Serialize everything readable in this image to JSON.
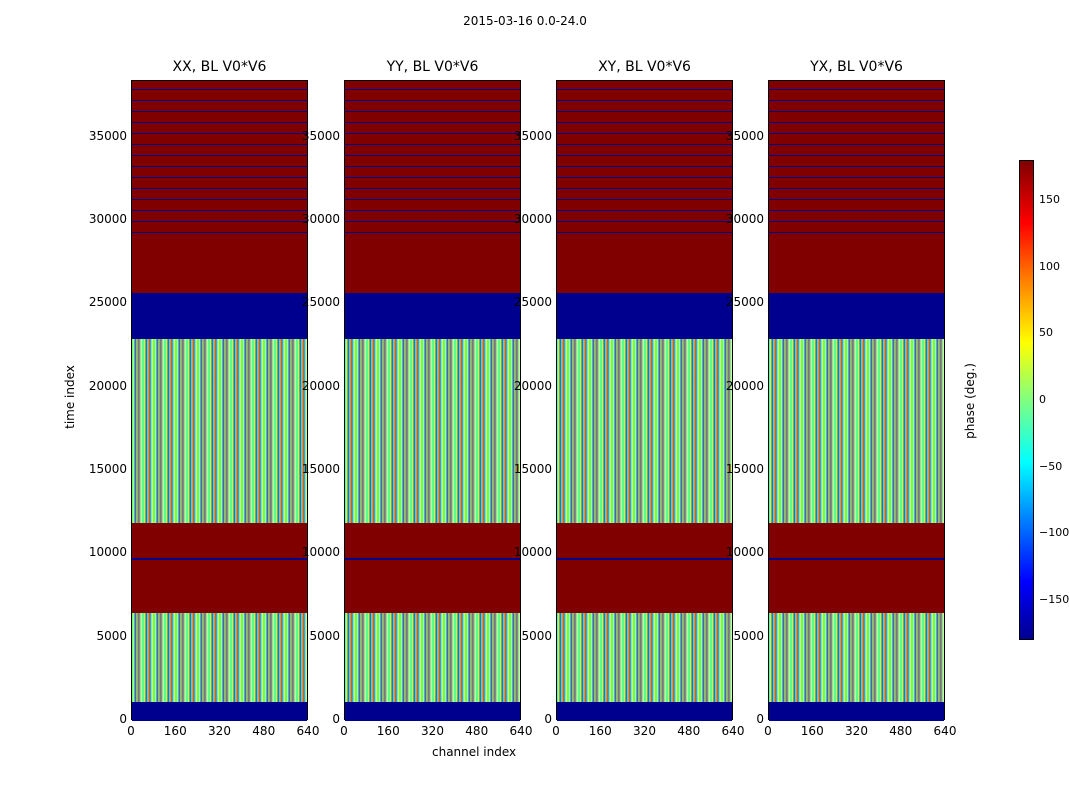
{
  "chart_data": {
    "type": "heatmap",
    "suptitle": "2015-03-16 0.0-24.0",
    "panels": [
      {
        "title": "XX, BL V0*V6"
      },
      {
        "title": "YY, BL V0*V6"
      },
      {
        "title": "XY, BL V0*V6"
      },
      {
        "title": "YX, BL V0*V6"
      }
    ],
    "xlabel": "channel index",
    "ylabel": "time index",
    "xlim": [
      0,
      640
    ],
    "ylim": [
      0,
      38400
    ],
    "x_ticks": [
      "0",
      "160",
      "320",
      "480",
      "640"
    ],
    "y_ticks": [
      "0",
      "5000",
      "10000",
      "15000",
      "20000",
      "25000",
      "30000",
      "35000"
    ],
    "colorbar": {
      "label": "phase (deg.)",
      "range": [
        -180,
        180
      ],
      "ticks": [
        "150",
        "100",
        "50",
        "0",
        "−50",
        "−100",
        "−150"
      ]
    },
    "colors": {
      "dark_red": "#800000",
      "dark_blue": "#00008f"
    }
  }
}
